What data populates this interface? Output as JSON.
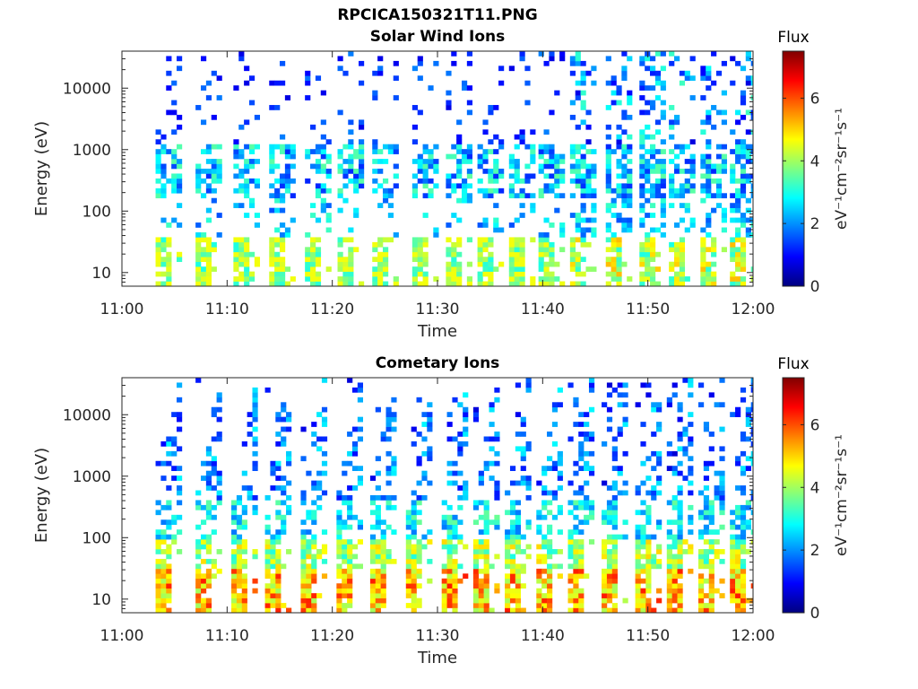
{
  "figure": {
    "title": "RPCICA150321T11.PNG"
  },
  "chart_data": [
    {
      "type": "heatmap",
      "title": "Solar Wind Ions",
      "xlabel": "Time",
      "ylabel": "Energy (eV)",
      "x_range": [
        "11:00",
        "12:00"
      ],
      "x_ticks": [
        "11:00",
        "11:10",
        "11:20",
        "11:30",
        "11:40",
        "11:50",
        "12:00"
      ],
      "y_scale": "log",
      "y_range": [
        6,
        40000
      ],
      "y_ticks": [
        10,
        100,
        1000,
        10000
      ],
      "y_tick_labels": [
        "10",
        "100",
        "1000",
        "10000"
      ],
      "colorbar": {
        "label": "Flux",
        "units": "eV⁻¹cm⁻²sr⁻¹s⁻¹",
        "range": [
          0,
          7.5
        ],
        "ticks": [
          "0",
          "2",
          "4",
          "6"
        ],
        "colormap": "jet"
      },
      "sweeps_start_min": [
        3.2,
        7.0,
        10.6,
        14.0,
        17.4,
        20.5,
        23.8,
        27.6,
        30.8,
        33.8,
        36.8,
        39.6,
        42.6,
        46.0,
        49.2,
        52.0,
        55.0,
        57.8
      ],
      "max_flux_low_energy": 5.2
    },
    {
      "type": "heatmap",
      "title": "Cometary Ions",
      "xlabel": "Time",
      "ylabel": "Energy (eV)",
      "x_range": [
        "11:00",
        "12:00"
      ],
      "x_ticks": [
        "11:00",
        "11:10",
        "11:20",
        "11:30",
        "11:40",
        "11:50",
        "12:00"
      ],
      "y_scale": "log",
      "y_range": [
        6,
        40000
      ],
      "y_ticks": [
        10,
        100,
        1000,
        10000
      ],
      "y_tick_labels": [
        "10",
        "100",
        "1000",
        "10000"
      ],
      "colorbar": {
        "label": "Flux",
        "units": "eV⁻¹cm⁻²sr⁻¹s⁻¹",
        "range": [
          0,
          7.5
        ],
        "ticks": [
          "0",
          "2",
          "4",
          "6"
        ],
        "colormap": "jet"
      },
      "sweeps_start_min": [
        3.2,
        7.0,
        10.4,
        13.6,
        17.0,
        20.4,
        23.6,
        27.0,
        30.4,
        33.4,
        36.4,
        39.4,
        42.4,
        45.6,
        48.8,
        51.8,
        54.8,
        57.8
      ],
      "max_flux_low_energy": 6.4
    }
  ]
}
